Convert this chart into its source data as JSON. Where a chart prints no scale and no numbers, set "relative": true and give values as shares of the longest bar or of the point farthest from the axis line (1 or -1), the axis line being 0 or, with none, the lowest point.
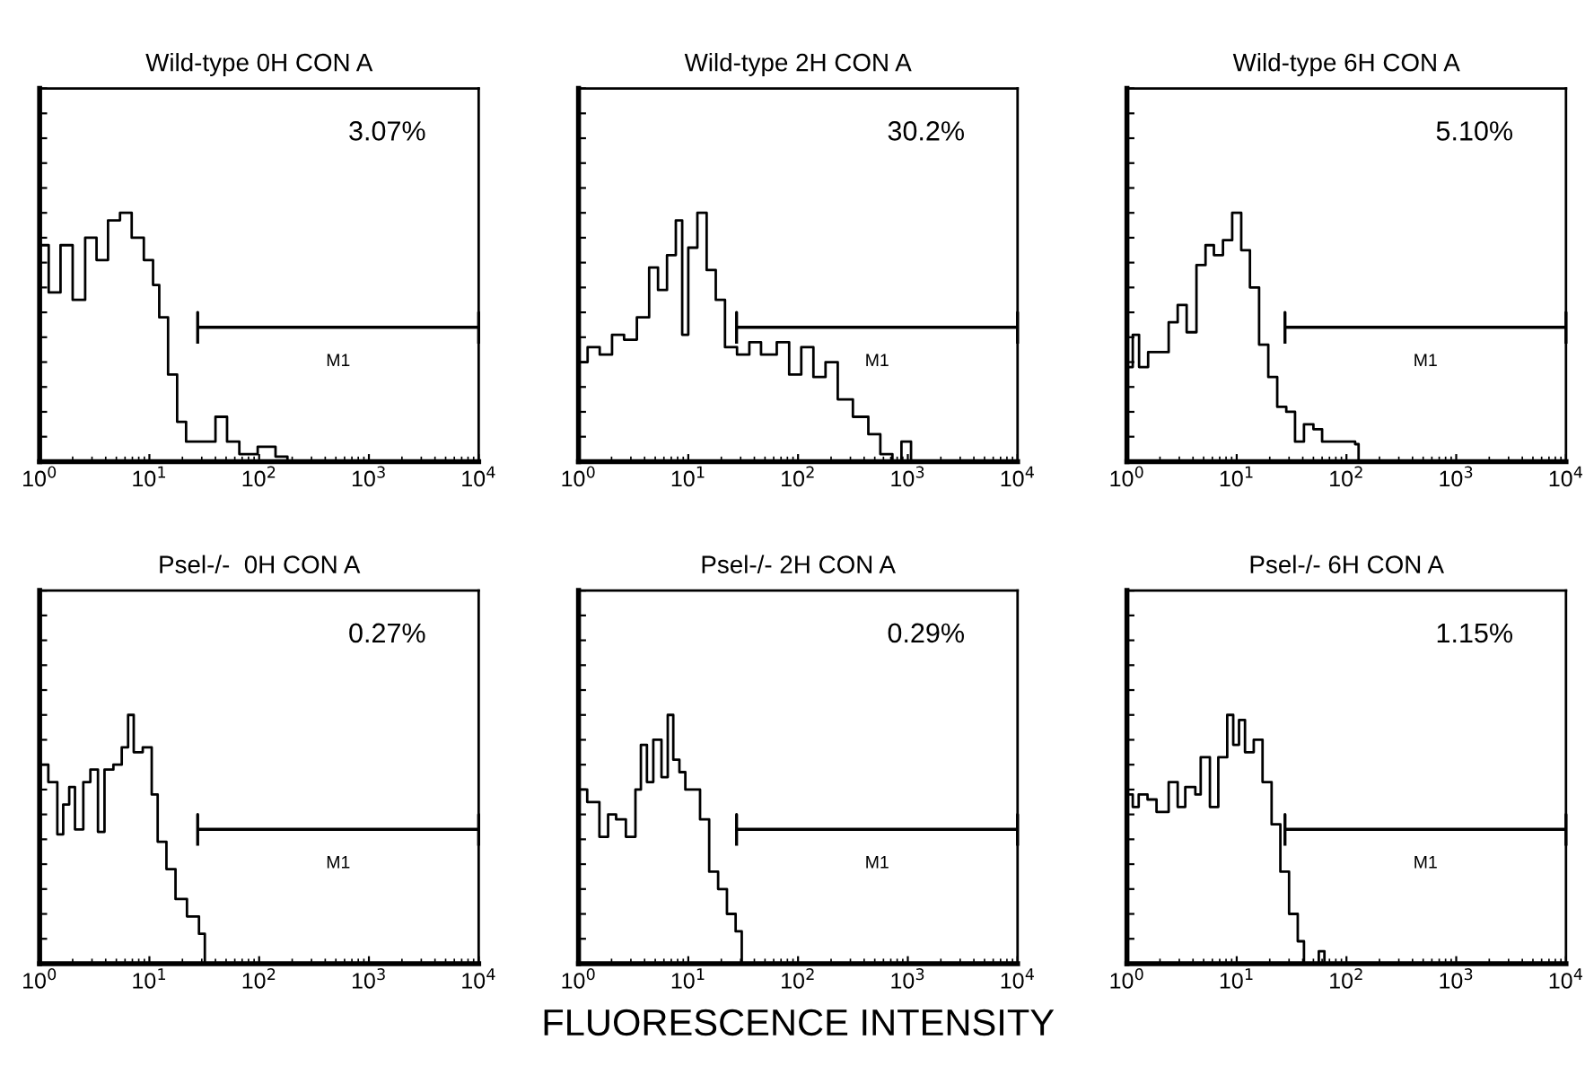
{
  "chart_data": [
    {
      "type": "step",
      "relative": true,
      "title": "Wild-type 0H CON A",
      "annotations": [
        "3.07%",
        "M1"
      ],
      "log": "x",
      "xlim": [
        1,
        10000
      ],
      "xticks": [
        {
          "value": 1,
          "label": "10$^{0}$"
        },
        {
          "value": 10,
          "label": "10$^{1}$"
        },
        {
          "value": 100,
          "label": "10$^{2}$"
        },
        {
          "value": 1000,
          "label": "10$^{3}$"
        },
        {
          "value": 10000,
          "label": "10$^{4}$"
        }
      ],
      "tick_labels": "x",
      "series": [
        {
          "color": "#000000",
          "x": [
            1,
            1.21,
            1.55,
            2.0,
            2.6,
            3.3,
            4.2,
            5.4,
            6.9,
            8.9,
            10.8,
            12.3,
            14.8,
            17.9,
            21.6,
            31.5,
            40,
            51,
            66,
            97,
            141,
            181
          ],
          "values": [
            0.87,
            0.68,
            0.87,
            0.65,
            0.9,
            0.81,
            0.97,
            1.0,
            0.9,
            0.81,
            0.71,
            0.58,
            0.35,
            0.16,
            0.08,
            0.08,
            0.18,
            0.08,
            0.03,
            0.06,
            0.02,
            0
          ]
        }
      ]
    },
    {
      "type": "step",
      "relative": true,
      "title": "Wild-type 2H CON A",
      "annotations": [
        "30.2%",
        "M1"
      ],
      "log": "x",
      "xlim": [
        1,
        10000
      ],
      "xticks": [
        {
          "value": 1,
          "label": "10$^{0}$"
        },
        {
          "value": 10,
          "label": "10$^{1}$"
        },
        {
          "value": 100,
          "label": "10$^{2}$"
        },
        {
          "value": 1000,
          "label": "10$^{3}$"
        },
        {
          "value": 10000,
          "label": "10$^{4}$"
        }
      ],
      "tick_labels": "x",
      "series": [
        {
          "color": "#000000",
          "x": [
            1,
            1.21,
            1.56,
            2.02,
            2.6,
            3.4,
            4.4,
            5.3,
            6.4,
            7.7,
            8.8,
            10,
            12.1,
            14.7,
            17.8,
            21.6,
            27.8,
            36,
            46,
            64,
            83,
            107,
            138,
            178,
            230,
            316,
            437,
            562,
            724,
            875,
            1070
          ],
          "values": [
            0.4,
            0.46,
            0.43,
            0.51,
            0.49,
            0.58,
            0.78,
            0.69,
            0.83,
            0.97,
            0.51,
            0.86,
            1.0,
            0.77,
            0.65,
            0.46,
            0.43,
            0.48,
            0.43,
            0.48,
            0.35,
            0.46,
            0.34,
            0.4,
            0.25,
            0.18,
            0.11,
            0.03,
            0,
            0.08,
            0
          ]
        }
      ]
    },
    {
      "type": "step",
      "relative": true,
      "title": "Wild-type 6H CON A",
      "annotations": [
        "5.10%",
        "M1"
      ],
      "log": "x",
      "xlim": [
        1,
        10000
      ],
      "xticks": [
        {
          "value": 1,
          "label": "10$^{0}$"
        },
        {
          "value": 10,
          "label": "10$^{1}$"
        },
        {
          "value": 100,
          "label": "10$^{2}$"
        },
        {
          "value": 1000,
          "label": "10$^{3}$"
        },
        {
          "value": 10000,
          "label": "10$^{4}$"
        }
      ],
      "tick_labels": "x",
      "series": [
        {
          "color": "#000000",
          "x": [
            1,
            1.13,
            1.29,
            1.56,
            2.0,
            2.4,
            2.9,
            3.5,
            4.3,
            5.2,
            6.2,
            7.5,
            9.1,
            11,
            13.2,
            16,
            19.4,
            23.4,
            28.3,
            34,
            41,
            50,
            60,
            89,
            120,
            129
          ],
          "values": [
            0.38,
            0.51,
            0.38,
            0.44,
            0.44,
            0.56,
            0.63,
            0.52,
            0.79,
            0.87,
            0.83,
            0.89,
            1.0,
            0.85,
            0.7,
            0.47,
            0.34,
            0.22,
            0.2,
            0.08,
            0.15,
            0.13,
            0.08,
            0.08,
            0.07,
            0
          ]
        }
      ]
    },
    {
      "type": "step",
      "relative": true,
      "title": "Psel-/-  0H CON A",
      "annotations": [
        "0.27%",
        "M1"
      ],
      "log": "x",
      "xlim": [
        1,
        10000
      ],
      "xticks": [
        {
          "value": 1,
          "label": "10$^{0}$"
        },
        {
          "value": 10,
          "label": "10$^{1}$"
        },
        {
          "value": 100,
          "label": "10$^{2}$"
        },
        {
          "value": 1000,
          "label": "10$^{3}$"
        },
        {
          "value": 10000,
          "label": "10$^{4}$"
        }
      ],
      "tick_labels": "x",
      "series": [
        {
          "color": "#000000",
          "x": [
            1,
            1.2,
            1.45,
            1.64,
            1.86,
            2.1,
            2.5,
            2.9,
            3.4,
            3.9,
            4.7,
            5.6,
            6.4,
            7.2,
            8.7,
            10.5,
            11.9,
            14.3,
            17.3,
            22,
            28.3,
            32
          ],
          "values": [
            0.8,
            0.73,
            0.52,
            0.64,
            0.71,
            0.54,
            0.73,
            0.78,
            0.53,
            0.78,
            0.8,
            0.87,
            1.0,
            0.85,
            0.87,
            0.68,
            0.49,
            0.38,
            0.26,
            0.19,
            0.12,
            0
          ]
        }
      ]
    },
    {
      "type": "step",
      "relative": true,
      "title": "Psel-/- 2H CON A",
      "xlabel": "FLUORESCENCE INTENSITY",
      "annotations": [
        "0.29%",
        "M1"
      ],
      "log": "x",
      "xlim": [
        1,
        10000
      ],
      "xticks": [
        {
          "value": 1,
          "label": "10$^{0}$"
        },
        {
          "value": 10,
          "label": "10$^{1}$"
        },
        {
          "value": 100,
          "label": "10$^{2}$"
        },
        {
          "value": 1000,
          "label": "10$^{3}$"
        },
        {
          "value": 10000,
          "label": "10$^{4}$"
        }
      ],
      "tick_labels": "x",
      "series": [
        {
          "color": "#000000",
          "x": [
            1,
            1.2,
            1.55,
            1.86,
            2.2,
            2.7,
            3.3,
            3.7,
            4.2,
            4.8,
            5.7,
            6.5,
            7.3,
            8.3,
            9.4,
            11.3,
            12.8,
            15.5,
            18.7,
            22.5,
            27,
            30.7
          ],
          "values": [
            0.7,
            0.65,
            0.51,
            0.6,
            0.58,
            0.51,
            0.7,
            0.88,
            0.73,
            0.9,
            0.75,
            1.0,
            0.82,
            0.77,
            0.7,
            0.7,
            0.58,
            0.37,
            0.3,
            0.2,
            0.13,
            0
          ]
        }
      ]
    },
    {
      "type": "step",
      "relative": true,
      "title": "Psel-/- 6H CON A",
      "annotations": [
        "1.15%",
        "M1"
      ],
      "log": "x",
      "xlim": [
        1,
        10000
      ],
      "xticks": [
        {
          "value": 1,
          "label": "10$^{0}$"
        },
        {
          "value": 10,
          "label": "10$^{1}$"
        },
        {
          "value": 100,
          "label": "10$^{2}$"
        },
        {
          "value": 1000,
          "label": "10$^{3}$"
        },
        {
          "value": 10000,
          "label": "10$^{4}$"
        }
      ],
      "tick_labels": "x",
      "series": [
        {
          "color": "#000000",
          "x": [
            1,
            1.13,
            1.28,
            1.54,
            1.86,
            2.4,
            2.9,
            3.4,
            4.2,
            4.7,
            5.7,
            6.8,
            8.2,
            9.3,
            10.5,
            11.9,
            14.3,
            17.2,
            20.8,
            25,
            30,
            36,
            41,
            56,
            63
          ],
          "values": [
            0.68,
            0.63,
            0.68,
            0.66,
            0.61,
            0.73,
            0.63,
            0.71,
            0.68,
            0.83,
            0.63,
            0.83,
            1.0,
            0.88,
            0.98,
            0.85,
            0.9,
            0.73,
            0.56,
            0.37,
            0.2,
            0.09,
            0,
            0.05,
            0
          ]
        }
      ]
    }
  ]
}
